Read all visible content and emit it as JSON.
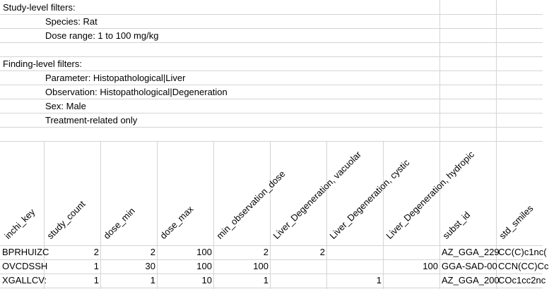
{
  "study_filters": {
    "heading": "Study-level filters:",
    "items": [
      "Species: Rat",
      "Dose range: 1 to 100 mg/kg"
    ]
  },
  "finding_filters": {
    "heading": "Finding-level filters:",
    "items": [
      "Parameter: Histopathological|Liver",
      "Observation: Histopathological|Degeneration",
      "Sex: Male",
      "Treatment-related only"
    ]
  },
  "table": {
    "headers": [
      "inchi_key",
      "study_count",
      "dose_min",
      "dose_max",
      "min_observation_dose",
      "Liver_Degeneration, vacuolar",
      "Liver_Degeneration, cystic",
      "Liver_Degeneration, hydropic",
      "subst_id",
      "std_smiles"
    ],
    "rows": [
      [
        "BPRHUIZC",
        "2",
        "2",
        "100",
        "2",
        "2",
        "",
        "",
        "AZ_GGA_229",
        "CC(C)c1nc("
      ],
      [
        "OVCDSSH",
        "1",
        "30",
        "100",
        "100",
        "",
        "",
        "100",
        "GGA-SAD-00",
        "CCN(CC)Cc"
      ],
      [
        "XGALLCV:",
        "1",
        "1",
        "10",
        "1",
        "",
        "1",
        "",
        "AZ_GGA_200",
        "COc1cc2nc"
      ]
    ]
  }
}
